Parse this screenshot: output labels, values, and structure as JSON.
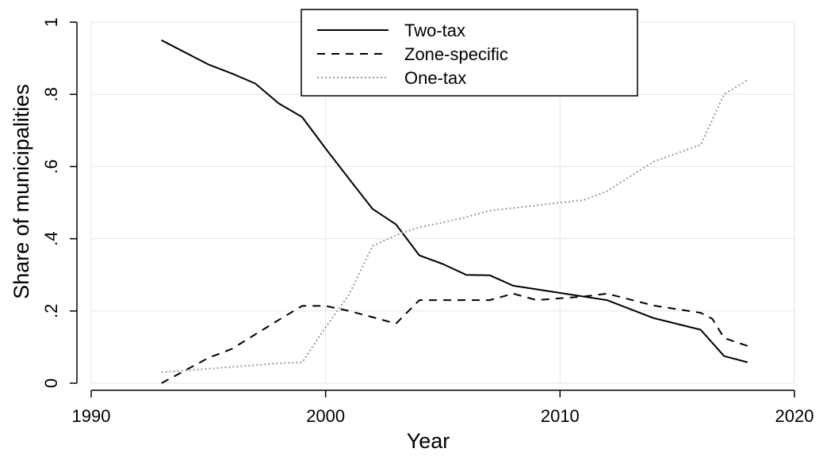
{
  "chart_data": {
    "type": "line",
    "xlabel": "Year",
    "ylabel": "Share of municipalities",
    "xlim": [
      1990,
      2020
    ],
    "ylim": [
      0,
      1
    ],
    "xticks": [
      {
        "value": 1990,
        "label": "1990"
      },
      {
        "value": 2000,
        "label": "2000"
      },
      {
        "value": 2010,
        "label": "2010"
      },
      {
        "value": 2020,
        "label": "2020"
      }
    ],
    "yticks": [
      {
        "value": 0,
        "label": "0"
      },
      {
        "value": 0.2,
        "label": ".2"
      },
      {
        "value": 0.4,
        "label": ".4"
      },
      {
        "value": 0.6,
        "label": ".6"
      },
      {
        "value": 0.8,
        "label": ".8"
      },
      {
        "value": 1,
        "label": "1"
      }
    ],
    "grid": true,
    "legend_position": "top-center",
    "colors": {
      "two_tax": "#000000",
      "zone_specific": "#000000",
      "one_tax": "#9a9a9a",
      "grid": "#e6e6e6"
    },
    "series": [
      {
        "name": "Two-tax",
        "style": "solid",
        "x": [
          1993,
          1995,
          1996,
          1997,
          1998,
          1999,
          2000,
          2001,
          2002,
          2003,
          2004,
          2005,
          2006,
          2007,
          2008,
          2010,
          2012,
          2014,
          2016,
          2017,
          2018
        ],
        "y": [
          0.95,
          0.883,
          0.858,
          0.83,
          0.775,
          0.737,
          0.65,
          0.566,
          0.483,
          0.44,
          0.354,
          0.33,
          0.3,
          0.299,
          0.27,
          0.25,
          0.23,
          0.18,
          0.148,
          0.075,
          0.058
        ]
      },
      {
        "name": "Zone-specific",
        "style": "dashed",
        "x": [
          1993,
          1995,
          1996,
          1997,
          1998,
          1999,
          2000,
          2001,
          2002,
          2003,
          2004,
          2005,
          2006,
          2007,
          2008,
          2009,
          2010,
          2011,
          2012,
          2014,
          2016,
          2016.5,
          2017,
          2018
        ],
        "y": [
          0.0,
          0.07,
          0.095,
          0.135,
          0.175,
          0.214,
          0.214,
          0.2,
          0.183,
          0.165,
          0.23,
          0.23,
          0.23,
          0.23,
          0.248,
          0.23,
          0.235,
          0.24,
          0.248,
          0.215,
          0.195,
          0.178,
          0.125,
          0.103
        ]
      },
      {
        "name": "One-tax",
        "style": "dotted",
        "x": [
          1993,
          1995,
          1996,
          1997,
          1998,
          1999,
          2000,
          2001,
          2002,
          2003,
          2004,
          2005,
          2006,
          2007,
          2008,
          2010,
          2011,
          2012,
          2014,
          2016,
          2017,
          2018
        ],
        "y": [
          0.03,
          0.04,
          0.045,
          0.05,
          0.055,
          0.058,
          0.155,
          0.245,
          0.38,
          0.41,
          0.432,
          0.445,
          0.46,
          0.478,
          0.485,
          0.5,
          0.507,
          0.532,
          0.614,
          0.66,
          0.8,
          0.84
        ]
      }
    ]
  }
}
